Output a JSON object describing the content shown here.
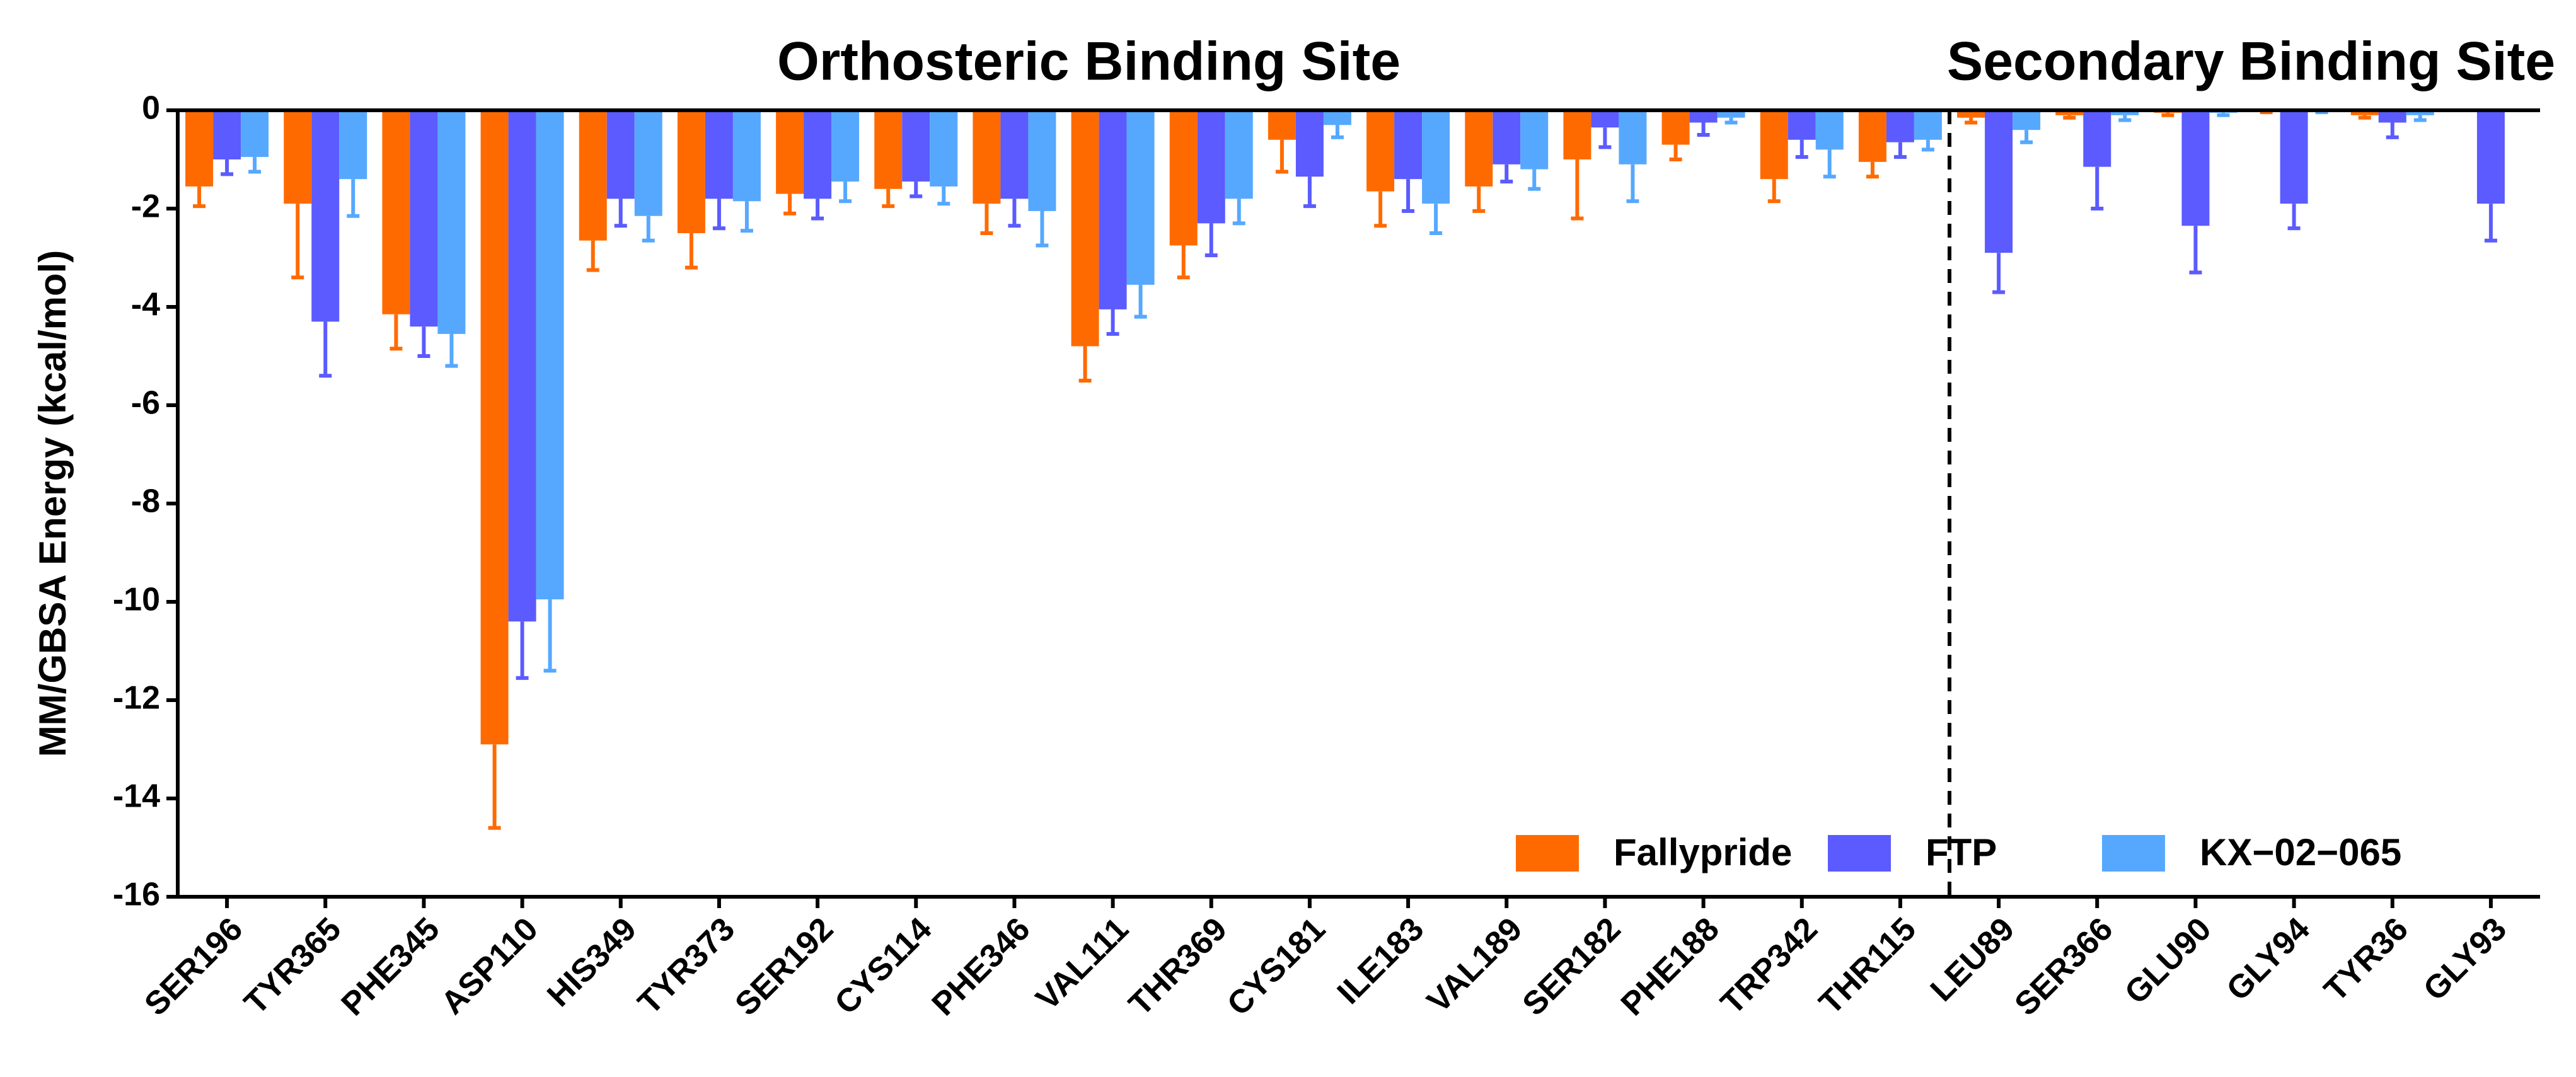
{
  "chart_data": {
    "type": "bar",
    "y_label": "MM/GBSA Energy (kcal/mol)",
    "annotations": [
      "Orthosteric Binding Site",
      "Secondary Binding Site"
    ],
    "categories": [
      "SER196",
      "TYR365",
      "PHE345",
      "ASP110",
      "HIS349",
      "TYR373",
      "SER192",
      "CYS114",
      "PHE346",
      "VAL111",
      "THR369",
      "CYS181",
      "ILE183",
      "VAL189",
      "SER182",
      "PHE188",
      "TRP342",
      "THR115",
      "LEU89",
      "SER366",
      "GLU90",
      "GLY94",
      "TYR36",
      "GLY93"
    ],
    "series": [
      {
        "name": "Fallypride",
        "color": "#ff6a00",
        "values": [
          -1.55,
          -1.9,
          -4.15,
          -12.9,
          -2.65,
          -2.5,
          -1.7,
          -1.6,
          -1.9,
          -4.8,
          -2.75,
          -0.6,
          -1.65,
          -1.55,
          -1.0,
          -0.7,
          -1.4,
          -1.05,
          -0.15,
          -0.1,
          -0.05,
          -0.02,
          -0.1,
          0
        ],
        "errors": [
          0.4,
          1.5,
          0.7,
          1.7,
          0.6,
          0.7,
          0.4,
          0.35,
          0.6,
          0.7,
          0.65,
          0.65,
          0.7,
          0.5,
          1.2,
          0.3,
          0.45,
          0.3,
          0.1,
          0.05,
          0.05,
          0.02,
          0.05,
          0
        ]
      },
      {
        "name": "FTP",
        "color": "#5b5bff",
        "values": [
          -1.0,
          -4.3,
          -4.4,
          -10.4,
          -1.8,
          -1.8,
          -1.8,
          -1.45,
          -1.8,
          -4.05,
          -2.3,
          -1.35,
          -1.4,
          -1.1,
          -0.35,
          -0.25,
          -0.6,
          -0.65,
          -2.9,
          -1.15,
          -2.35,
          -1.9,
          -0.25,
          -1.9
        ],
        "errors": [
          0.3,
          1.1,
          0.6,
          1.15,
          0.55,
          0.6,
          0.4,
          0.3,
          0.55,
          0.5,
          0.65,
          0.6,
          0.65,
          0.35,
          0.4,
          0.25,
          0.35,
          0.3,
          0.8,
          0.85,
          0.95,
          0.5,
          0.3,
          0.75
        ]
      },
      {
        "name": "KX−02−065",
        "color": "#56a8ff",
        "values": [
          -0.95,
          -1.4,
          -4.55,
          -9.95,
          -2.15,
          -1.85,
          -1.45,
          -1.55,
          -2.05,
          -3.55,
          -1.8,
          -0.3,
          -1.9,
          -1.2,
          -1.1,
          -0.15,
          -0.8,
          -0.6,
          -0.4,
          -0.1,
          -0.05,
          -0.02,
          -0.1,
          0
        ],
        "errors": [
          0.3,
          0.75,
          0.65,
          1.45,
          0.5,
          0.6,
          0.4,
          0.35,
          0.7,
          0.65,
          0.5,
          0.25,
          0.6,
          0.4,
          0.75,
          0.1,
          0.55,
          0.2,
          0.25,
          0.1,
          0.05,
          0.02,
          0.1,
          0
        ]
      }
    ],
    "ylim": [
      0,
      -16
    ],
    "yticks": [
      0,
      -2,
      -4,
      -6,
      -8,
      -10,
      -12,
      -14,
      -16
    ]
  }
}
